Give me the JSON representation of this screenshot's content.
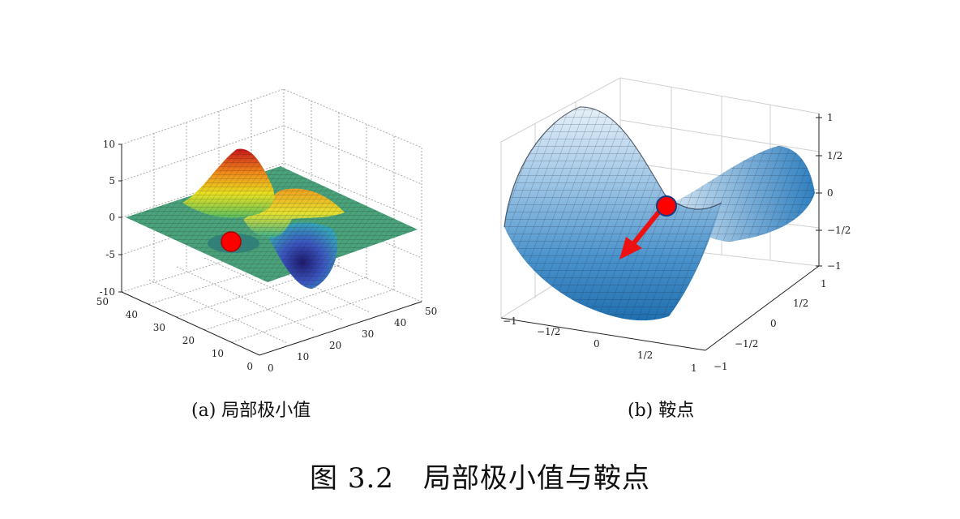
{
  "panel_a": {
    "caption_label": "(a)",
    "caption_text": "局部极小值",
    "z_ticks": [
      "10",
      "5",
      "0",
      "-5",
      "-10"
    ],
    "y_ticks": [
      "50",
      "40",
      "30",
      "20",
      "10",
      "0"
    ],
    "x_ticks": [
      "0",
      "10",
      "20",
      "30",
      "40",
      "50"
    ]
  },
  "panel_b": {
    "caption_label": "(b)",
    "caption_text": "鞍点",
    "z_ticks": [
      "1",
      "1/2",
      "0",
      "−1/2",
      "−1"
    ],
    "x_ticks": [
      "−1",
      "−1/2",
      "0",
      "1/2",
      "1"
    ],
    "y_ticks": [
      "1",
      "1/2",
      "0",
      "−1/2",
      "−1"
    ]
  },
  "figure": {
    "number": "图 3.2",
    "title": "局部极小值与鞍点"
  },
  "colors": {
    "marker": "#ff0000",
    "arrow": "#ee1111",
    "saddle_light": "#dcebf6",
    "saddle_dark": "#1f6fb0",
    "plane": "#4aa27a"
  }
}
